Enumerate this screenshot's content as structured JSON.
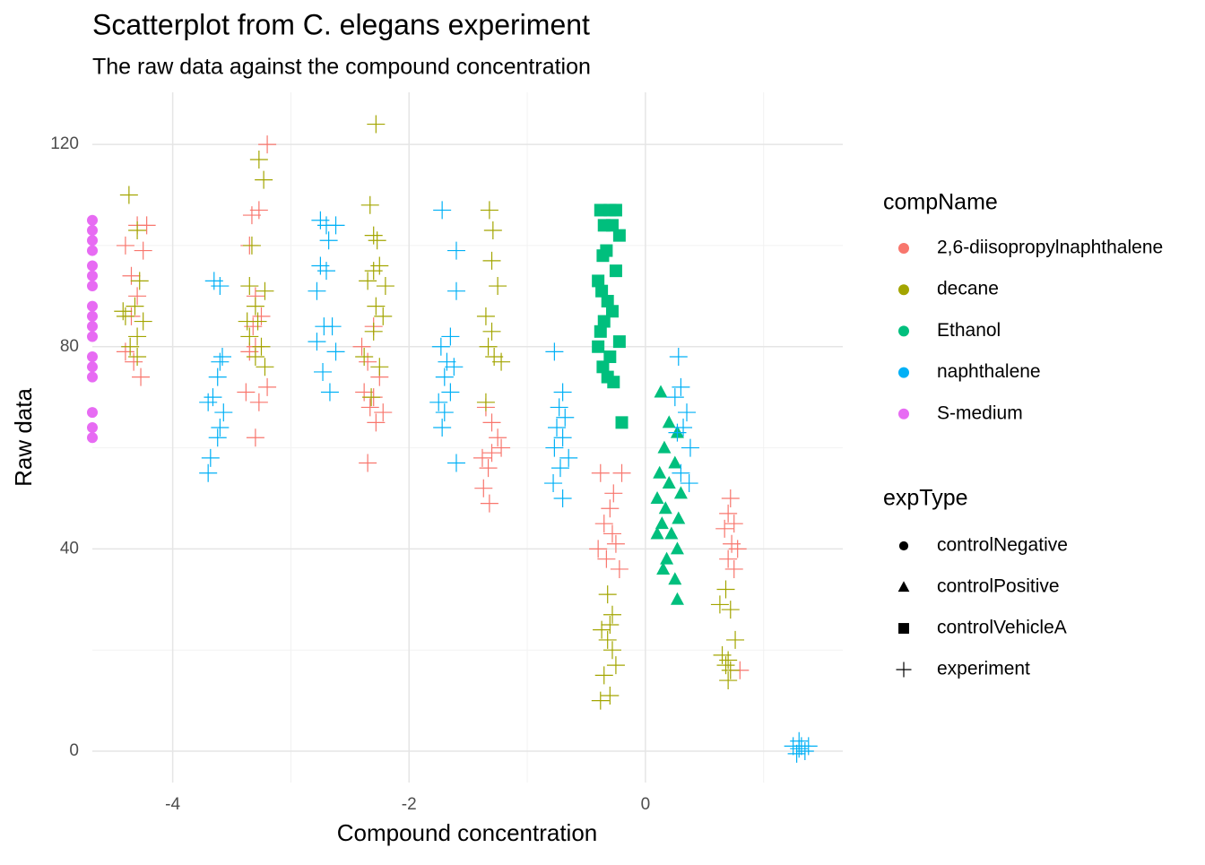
{
  "chart_data": {
    "type": "scatter",
    "title": "Scatterplot from C. elegans experiment",
    "subtitle": "The raw data against the compound concentration",
    "x_label": "Compound concentration",
    "y_label": "Raw data",
    "xlim": [
      -4.68,
      1.67
    ],
    "ylim": [
      -6.2,
      130.3
    ],
    "xticks": [
      -4,
      -2,
      0
    ],
    "yticks": [
      0,
      40,
      80,
      120
    ],
    "xminor": [
      -3,
      -1,
      1
    ],
    "yminor": [
      20,
      60,
      100
    ],
    "grid": true,
    "legend_position": "right",
    "color_legend": {
      "title": "compName",
      "items": [
        {
          "name": "2,6-diisopropylnaphthalene",
          "color": "#F8766D"
        },
        {
          "name": "decane",
          "color": "#A3A500"
        },
        {
          "name": "Ethanol",
          "color": "#00BF7D"
        },
        {
          "name": "naphthalene",
          "color": "#00B0F6"
        },
        {
          "name": "S-medium",
          "color": "#E76BF3"
        }
      ]
    },
    "shape_legend": {
      "title": "expType",
      "items": [
        {
          "name": "controlNegative",
          "shape": "circle"
        },
        {
          "name": "controlPositive",
          "shape": "triangle"
        },
        {
          "name": "controlVehicleA",
          "shape": "square"
        },
        {
          "name": "experiment",
          "shape": "plus"
        }
      ]
    },
    "series": [
      {
        "compName": "S-medium",
        "expType": "controlNegative",
        "x": [
          -4.68,
          -4.68,
          -4.68,
          -4.68,
          -4.68,
          -4.68,
          -4.68,
          -4.68,
          -4.68,
          -4.68,
          -4.68,
          -4.68,
          -4.68,
          -4.68,
          -4.68,
          -4.68,
          -4.68
        ],
        "y": [
          62,
          64,
          67,
          74,
          76,
          78,
          82,
          84,
          86,
          88,
          92,
          94,
          96,
          99,
          101,
          103,
          105
        ]
      },
      {
        "compName": "Ethanol",
        "expType": "controlVehicleA",
        "x": [
          -0.38,
          -0.3,
          -0.25,
          -0.35,
          -0.28,
          -0.22,
          -0.33,
          -0.36,
          -0.25,
          -0.4,
          -0.37,
          -0.32,
          -0.28,
          -0.35,
          -0.38,
          -0.22,
          -0.4,
          -0.3,
          -0.36,
          -0.32,
          -0.27,
          -0.2
        ],
        "y": [
          107,
          107,
          107,
          104,
          104,
          102,
          99,
          98,
          95,
          93,
          91,
          89,
          87,
          85,
          83,
          81,
          80,
          78,
          76,
          74,
          73,
          65
        ]
      },
      {
        "compName": "Ethanol",
        "expType": "controlPositive",
        "x": [
          0.13,
          0.2,
          0.27,
          0.16,
          0.25,
          0.12,
          0.2,
          0.3,
          0.1,
          0.17,
          0.28,
          0.14,
          0.22,
          0.1,
          0.27,
          0.18,
          0.15,
          0.25,
          0.27
        ],
        "y": [
          71,
          65,
          63,
          60,
          57,
          55,
          53,
          51,
          50,
          48,
          46,
          45,
          43,
          43,
          40,
          38,
          36,
          34,
          30
        ]
      },
      {
        "compName": "2,6-diisopropylnaphthalene",
        "expType": "experiment",
        "x": [
          -4.4,
          -4.3,
          -4.25,
          -4.35,
          -4.3,
          -4.4,
          -4.33,
          -4.27,
          -4.35,
          -4.22,
          -3.2,
          -3.27,
          -3.33,
          -3.35,
          -3.3,
          -3.25,
          -3.32,
          -3.3,
          -3.35,
          -3.2,
          -3.38,
          -3.27,
          -3.3,
          -2.4,
          -2.3,
          -2.35,
          -2.25,
          -2.38,
          -2.3,
          -2.33,
          -2.22,
          -2.28,
          -2.35,
          -1.35,
          -1.3,
          -1.25,
          -1.22,
          -1.3,
          -1.38,
          -1.33,
          -1.37,
          -1.32,
          -0.38,
          -0.2,
          -0.27,
          -0.3,
          -0.35,
          -0.28,
          -0.25,
          -0.4,
          -0.33,
          -0.22,
          0.72,
          0.7,
          0.75,
          0.67,
          0.73,
          0.78,
          0.7,
          0.75,
          0.8
        ],
        "y": [
          100,
          104,
          99,
          94,
          90,
          79,
          77,
          74,
          86,
          104,
          120,
          107,
          106,
          100,
          90,
          86,
          84,
          80,
          79,
          72,
          71,
          69,
          62,
          80,
          84,
          77,
          74,
          71,
          70,
          68,
          67,
          65,
          57,
          68,
          65,
          62,
          60,
          59,
          58,
          56,
          52,
          49,
          55,
          55,
          51,
          48,
          45,
          43,
          41,
          40,
          38,
          36,
          50,
          47,
          45,
          44,
          41,
          40,
          38,
          36,
          16
        ]
      },
      {
        "compName": "decane",
        "expType": "experiment",
        "x": [
          -4.37,
          -4.3,
          -4.28,
          -4.4,
          -4.32,
          -4.25,
          -4.3,
          -4.36,
          -4.3,
          -4.42,
          -3.27,
          -3.23,
          -3.33,
          -3.35,
          -3.22,
          -3.3,
          -3.37,
          -3.28,
          -3.25,
          -3.3,
          -3.22,
          -3.35,
          -2.28,
          -2.33,
          -2.3,
          -2.27,
          -2.25,
          -2.3,
          -2.35,
          -2.2,
          -2.28,
          -2.22,
          -2.3,
          -2.38,
          -2.25,
          -2.32,
          -1.32,
          -1.29,
          -1.3,
          -1.25,
          -1.35,
          -1.3,
          -1.33,
          -1.28,
          -1.22,
          -1.35,
          -0.32,
          -0.28,
          -0.3,
          -0.37,
          -0.32,
          -0.28,
          -0.25,
          -0.35,
          -0.3,
          -0.38,
          0.68,
          0.63,
          0.72,
          0.76,
          0.65,
          0.7,
          0.68,
          0.72,
          0.7
        ],
        "y": [
          110,
          103,
          93,
          86,
          88,
          85,
          82,
          80,
          78,
          87,
          117,
          113,
          100,
          92,
          91,
          88,
          85,
          85,
          80,
          78,
          76,
          82,
          124,
          108,
          102,
          101,
          96,
          95,
          93,
          92,
          88,
          86,
          83,
          78,
          76,
          70,
          107,
          103,
          97,
          92,
          86,
          83,
          80,
          78,
          77,
          69,
          31,
          27,
          25,
          24,
          22,
          20,
          17,
          15,
          11,
          10,
          32,
          29,
          28,
          22,
          19,
          18,
          17,
          16,
          14
        ]
      },
      {
        "compName": "naphthalene",
        "expType": "experiment",
        "x": [
          -3.7,
          -3.68,
          -3.62,
          -3.6,
          -3.57,
          -3.7,
          -3.66,
          -3.62,
          -3.6,
          -3.58,
          -3.65,
          -3.6,
          -2.75,
          -2.7,
          -2.62,
          -2.68,
          -2.75,
          -2.7,
          -2.78,
          -2.65,
          -2.72,
          -2.78,
          -2.62,
          -2.73,
          -2.67,
          -1.72,
          -1.6,
          -1.6,
          -1.73,
          -1.65,
          -1.68,
          -1.62,
          -1.7,
          -1.65,
          -1.75,
          -1.7,
          -1.72,
          -1.6,
          -0.77,
          -0.7,
          -0.73,
          -0.68,
          -0.75,
          -0.7,
          -0.77,
          -0.65,
          -0.72,
          -0.78,
          -0.7,
          0.28,
          0.3,
          0.25,
          0.35,
          0.32,
          0.27,
          0.38,
          0.3,
          0.37,
          1.25,
          1.3,
          1.35,
          1.32,
          1.28,
          1.38,
          1.3
        ],
        "y": [
          55,
          58,
          62,
          64,
          67,
          69,
          70,
          74,
          77,
          78,
          93,
          92,
          105,
          104,
          104,
          101,
          96,
          95,
          91,
          84,
          84,
          81,
          79,
          75,
          71,
          107,
          99,
          91,
          80,
          82,
          77,
          76,
          74,
          71,
          69,
          67,
          64,
          57,
          79,
          71,
          68,
          66,
          64,
          62,
          60,
          58,
          56,
          53,
          50,
          78,
          72,
          70,
          67,
          64,
          63,
          60,
          55,
          53,
          1,
          2,
          0,
          1,
          -0.5,
          1,
          0.5
        ]
      }
    ]
  }
}
